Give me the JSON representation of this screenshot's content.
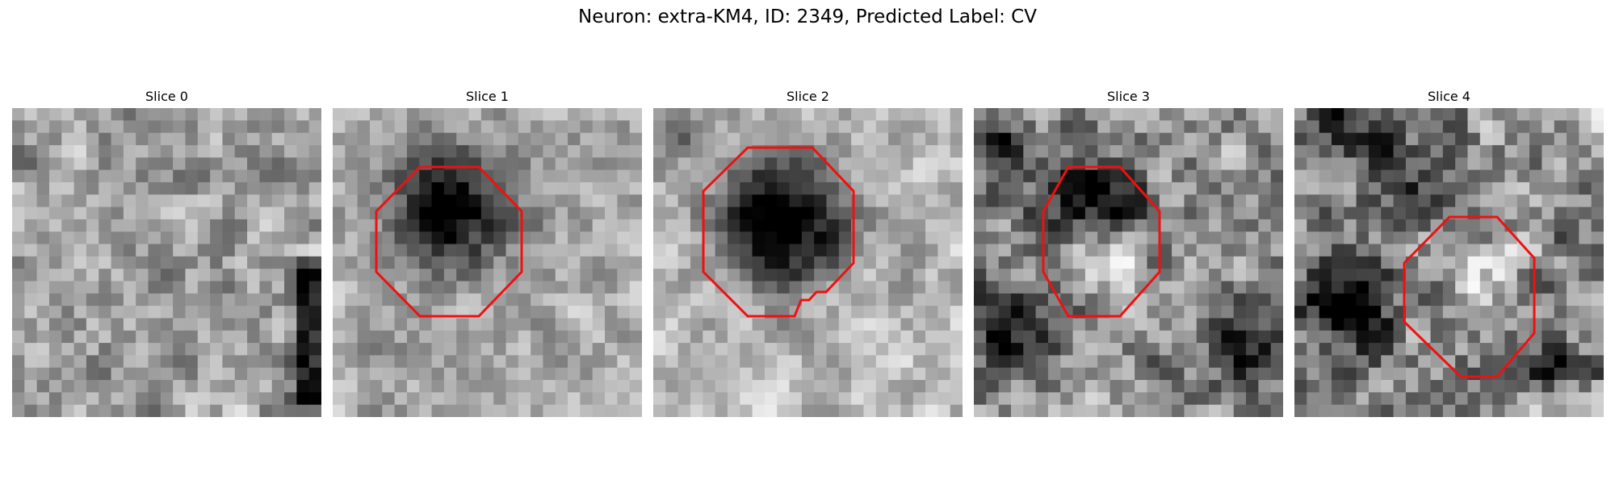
{
  "figure": {
    "suptitle": "Neuron: extra-KM4, ID: 2349, Predicted Label: CV"
  },
  "contour_color": "#ee1111",
  "colormap": "gray",
  "slices": [
    {
      "title": "Slice 0",
      "grid": [
        "..................*......",
        "..................*......",
        "...................*.....",
        "..................**.....",
        "...................*.....",
        "...................*.....",
        "..................***....",
        "..................*..*...",
        "..................*..*...",
        "...................*.*...",
        "..................*......",
        ".........................",
        "........................."
      ]
    },
    {
      "title": "Slice 1"
    },
    {
      "title": "Slice 2"
    },
    {
      "title": "Slice 3"
    },
    {
      "title": "Slice 4"
    }
  ]
}
